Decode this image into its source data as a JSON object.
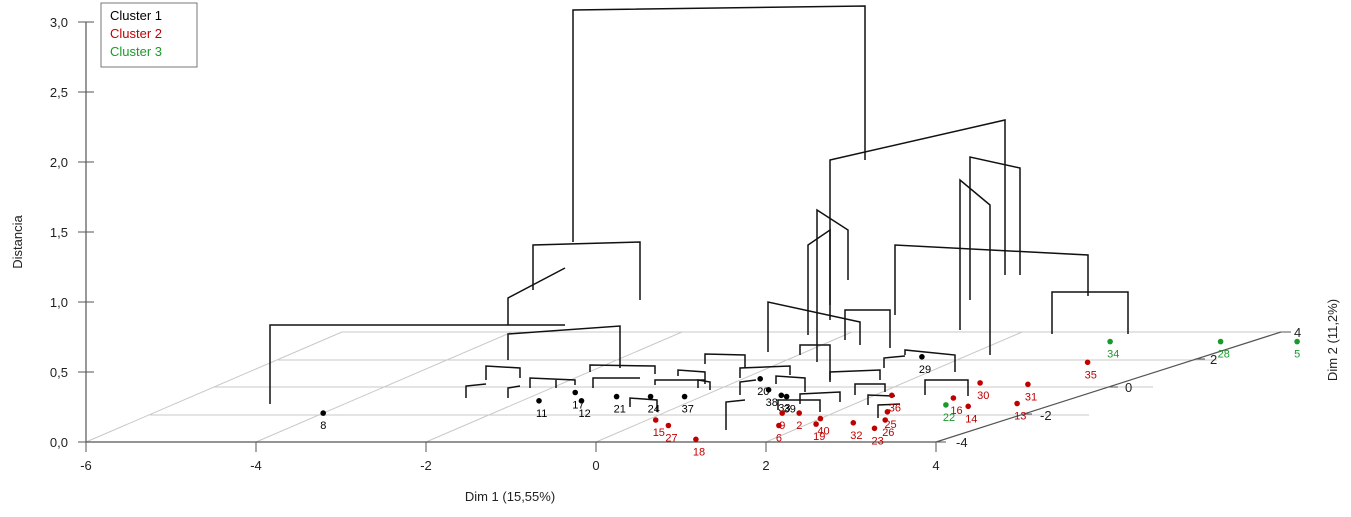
{
  "chart_data": {
    "type": "3d-dendrogram",
    "title": "",
    "xlabel": "Dim 1 (15,55%)",
    "ylabel": "Distancia",
    "zlabel": "Dim 2 (11,2%)",
    "x_ticks": [
      "-6",
      "-4",
      "-2",
      "0",
      "2",
      "4"
    ],
    "y_ticks": [
      "0,0",
      "0,5",
      "1,0",
      "1,5",
      "2,0",
      "2,5",
      "3,0"
    ],
    "z_ticks": [
      "-4",
      "-2",
      "0",
      "2",
      "4"
    ],
    "xlim": [
      -6,
      4
    ],
    "ylim": [
      0,
      3
    ],
    "zlim": [
      -4,
      4
    ],
    "legend": {
      "position": "top-left",
      "items": [
        {
          "label": "Cluster 1",
          "color": "#000000"
        },
        {
          "label": "Cluster 2",
          "color": "#c00000"
        },
        {
          "label": "Cluster 3",
          "color": "#1a9a2a"
        }
      ]
    },
    "points": [
      {
        "label": "8",
        "cluster": 1,
        "x": -4.0,
        "z": -1.9
      },
      {
        "label": "11",
        "cluster": 1,
        "x": -1.8,
        "z": -1.0
      },
      {
        "label": "17",
        "cluster": 1,
        "x": -1.6,
        "z": -0.4
      },
      {
        "label": "12",
        "cluster": 1,
        "x": -1.3,
        "z": -1.0
      },
      {
        "label": "21",
        "cluster": 1,
        "x": -1.0,
        "z": -0.7
      },
      {
        "label": "24",
        "cluster": 1,
        "x": -0.6,
        "z": -0.7
      },
      {
        "label": "37",
        "cluster": 1,
        "x": -0.2,
        "z": -0.7
      },
      {
        "label": "20",
        "cluster": 1,
        "x": 0.2,
        "z": 0.6
      },
      {
        "label": "38",
        "cluster": 1,
        "x": 0.6,
        "z": -0.2
      },
      {
        "label": "33",
        "cluster": 1,
        "x": 0.9,
        "z": -0.6
      },
      {
        "label": "39",
        "cluster": 1,
        "x": 1.0,
        "z": -0.7
      },
      {
        "label": "29",
        "cluster": 1,
        "x": 1.5,
        "z": 2.2
      },
      {
        "label": "15",
        "cluster": 2,
        "x": 0.1,
        "z": -2.4
      },
      {
        "label": "27",
        "cluster": 2,
        "x": 0.4,
        "z": -2.8
      },
      {
        "label": "18",
        "cluster": 2,
        "x": 1.1,
        "z": -3.8
      },
      {
        "label": "9",
        "cluster": 2,
        "x": 1.4,
        "z": -1.9
      },
      {
        "label": "2",
        "cluster": 2,
        "x": 1.6,
        "z": -1.9
      },
      {
        "label": "6",
        "cluster": 2,
        "x": 1.7,
        "z": -2.8
      },
      {
        "label": "40",
        "cluster": 2,
        "x": 2.0,
        "z": -2.3
      },
      {
        "label": "19",
        "cluster": 2,
        "x": 2.1,
        "z": -2.7
      },
      {
        "label": "36",
        "cluster": 2,
        "x": 2.2,
        "z": -0.6
      },
      {
        "label": "32",
        "cluster": 2,
        "x": 2.5,
        "z": -2.6
      },
      {
        "label": "25",
        "cluster": 2,
        "x": 2.6,
        "z": -1.8
      },
      {
        "label": "26",
        "cluster": 2,
        "x": 2.8,
        "z": -2.4
      },
      {
        "label": "23",
        "cluster": 2,
        "x": 2.9,
        "z": -3.0
      },
      {
        "label": "30",
        "cluster": 2,
        "x": 2.9,
        "z": 0.3
      },
      {
        "label": "16",
        "cluster": 2,
        "x": 3.0,
        "z": -0.8
      },
      {
        "label": "14",
        "cluster": 2,
        "x": 3.4,
        "z": -1.4
      },
      {
        "label": "31",
        "cluster": 2,
        "x": 3.5,
        "z": 0.2
      },
      {
        "label": "35",
        "cluster": 2,
        "x": 3.6,
        "z": 1.8
      },
      {
        "label": "13",
        "cluster": 2,
        "x": 3.9,
        "z": -1.2
      },
      {
        "label": "22",
        "cluster": 3,
        "x": 3.1,
        "z": -1.3
      },
      {
        "label": "34",
        "cluster": 3,
        "x": 3.3,
        "z": 3.3
      },
      {
        "label": "28",
        "cluster": 3,
        "x": 4.6,
        "z": 3.3
      },
      {
        "label": "5",
        "cluster": 3,
        "x": 5.5,
        "z": 3.3
      }
    ]
  }
}
